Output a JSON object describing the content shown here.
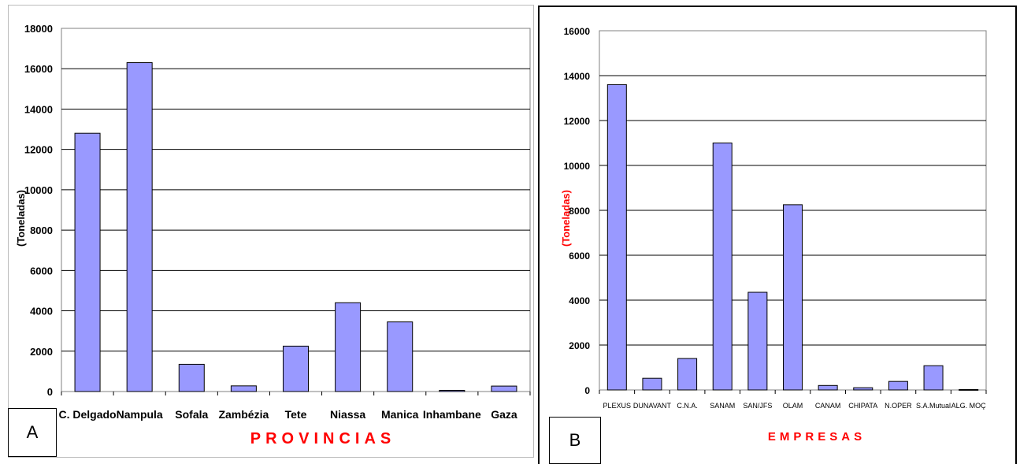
{
  "panels": {
    "a_label": "A",
    "b_label": "B"
  },
  "chart_data": [
    {
      "type": "bar",
      "ylabel": "(Toneladas)",
      "xlabel": "PROVINCIAS",
      "categories": [
        "C. Delgado",
        "Nampula",
        "Sofala",
        "Zambézia",
        "Tete",
        "Niassa",
        "Manica",
        "Inhambane",
        "Gaza"
      ],
      "values": [
        12800,
        16300,
        1350,
        280,
        2250,
        4400,
        3450,
        60,
        270
      ],
      "ylim": [
        0,
        18000
      ],
      "yticks": [
        0,
        2000,
        4000,
        6000,
        8000,
        10000,
        12000,
        14000,
        16000,
        18000
      ],
      "grid": true,
      "bar_color": "#9999FF",
      "xlabel_color": "#FF0000",
      "ylabel_color": "#000000"
    },
    {
      "type": "bar",
      "ylabel": "(Toneladas)",
      "xlabel": "EMPRESAS",
      "categories": [
        "PLEXUS",
        "DUNAVANT",
        "C.N.A.",
        "SANAM",
        "SAN/JFS",
        "OLAM",
        "CANAM",
        "CHIPATA",
        "N.OPER",
        "S.A.Mutual",
        "ALG. MOÇ"
      ],
      "values": [
        13600,
        520,
        1400,
        11000,
        4350,
        8250,
        200,
        100,
        380,
        1080,
        20
      ],
      "ylim": [
        0,
        16000
      ],
      "yticks": [
        0,
        2000,
        4000,
        6000,
        8000,
        10000,
        12000,
        14000,
        16000
      ],
      "grid": true,
      "bar_color": "#9999FF",
      "xlabel_color": "#FF0000",
      "ylabel_color": "#FF0000"
    }
  ]
}
